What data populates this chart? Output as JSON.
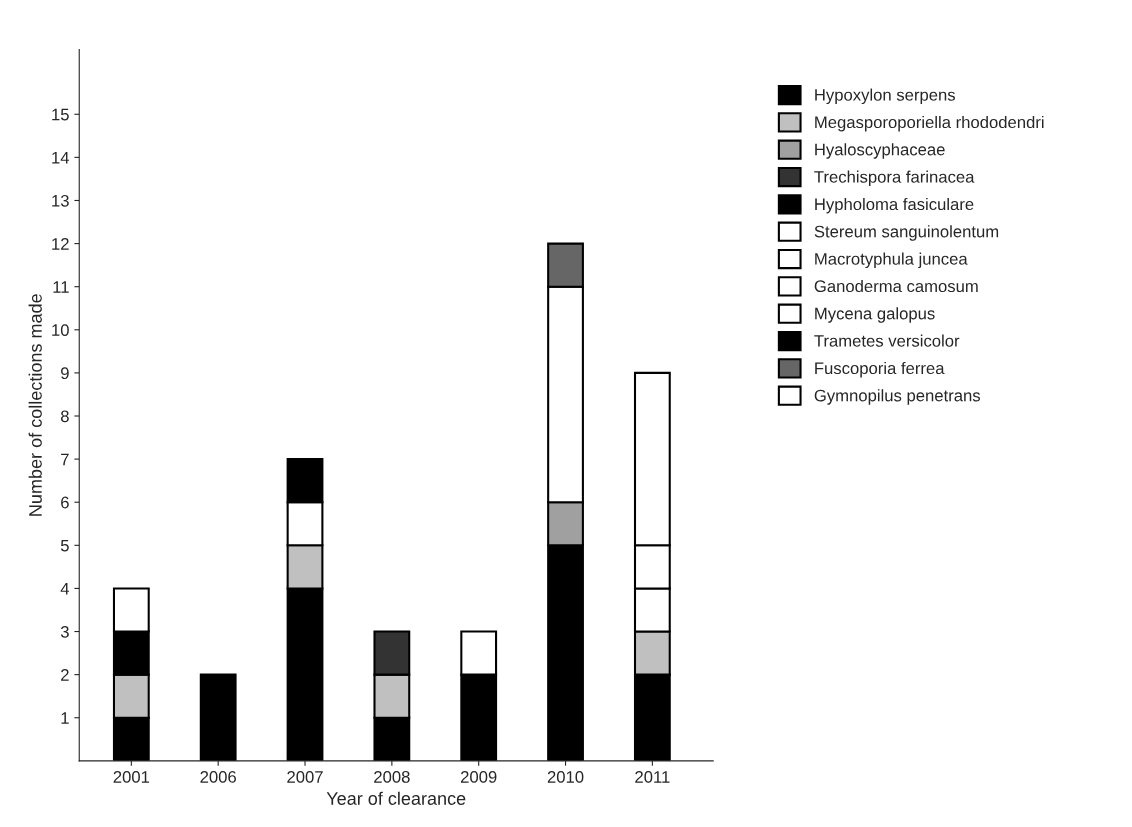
{
  "chart_data": {
    "type": "bar",
    "stacked": true,
    "xlabel": "Year of clearance",
    "ylabel": "Number of collections made",
    "categories": [
      "2001",
      "2006",
      "2007",
      "2008",
      "2009",
      "2010",
      "2011"
    ],
    "ylim": [
      0,
      16.5
    ],
    "yticks": [
      1,
      2,
      3,
      4,
      5,
      6,
      7,
      8,
      9,
      10,
      11,
      12,
      13,
      14,
      15
    ],
    "grid": false,
    "legend": "right",
    "series": [
      {
        "name": "Hypoxylon serpens",
        "color": "#000000",
        "values": [
          1,
          2,
          4,
          1,
          2,
          5,
          2
        ]
      },
      {
        "name": "Megasporoporiella rhododendri",
        "color": "#c0c0c0",
        "values": [
          1,
          0,
          1,
          1,
          0,
          0,
          1
        ]
      },
      {
        "name": "Hyaloscyphaceae",
        "color": "#a0a0a0",
        "values": [
          0,
          0,
          0,
          0,
          0,
          1,
          0
        ]
      },
      {
        "name": "Trechispora farinacea",
        "color": "#333333",
        "values": [
          0,
          0,
          0,
          1,
          0,
          0,
          0
        ]
      },
      {
        "name": "Hypholoma fasiculare",
        "color": "#000000",
        "values": [
          1,
          0,
          0,
          0,
          0,
          0,
          0
        ]
      },
      {
        "name": "Stereum sanguinolentum",
        "color": "#ffffff",
        "values": [
          1,
          0,
          0,
          0,
          0,
          0,
          0
        ]
      },
      {
        "name": "Macrotyphula juncea",
        "color": "#ffffff",
        "values": [
          0,
          0,
          0,
          0,
          1,
          0,
          1
        ]
      },
      {
        "name": "Ganoderma camosum",
        "color": "#ffffff",
        "values": [
          0,
          0,
          0,
          0,
          0,
          0,
          1
        ]
      },
      {
        "name": "Mycena galopus",
        "color": "#ffffff",
        "values": [
          0,
          0,
          1,
          0,
          0,
          5,
          4
        ]
      },
      {
        "name": "Trametes versicolor",
        "color": "#000000",
        "values": [
          0,
          0,
          1,
          0,
          0,
          0,
          0
        ]
      },
      {
        "name": "Fuscoporia ferrea",
        "color": "#666666",
        "values": [
          0,
          0,
          0,
          0,
          0,
          1,
          0
        ]
      },
      {
        "name": "Gymnopilus penetrans",
        "color": "#ffffff",
        "values": [
          0,
          0,
          0,
          0,
          0,
          0,
          0
        ]
      }
    ]
  }
}
